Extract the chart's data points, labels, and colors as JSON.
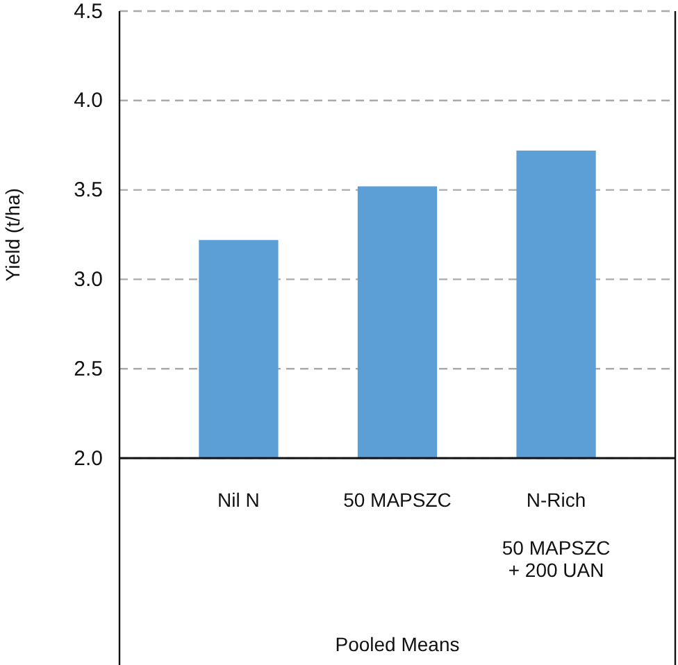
{
  "chart_data": {
    "type": "bar",
    "ylabel": "Yield (t/ha)",
    "annotations": [
      "Pooled Means"
    ],
    "categories": [
      "Nil N",
      "50 MAPSZC",
      "N-Rich\n\n50 MAPSZC\n+ 200 UAN"
    ],
    "values": [
      3.22,
      3.52,
      3.72
    ],
    "color": "#5b9fd6",
    "ylim": [
      2.0,
      4.5
    ],
    "yticks": [
      {
        "value": 2.0,
        "label": "2.0"
      },
      {
        "value": 2.5,
        "label": "2.5"
      },
      {
        "value": 3.0,
        "label": "3.0"
      },
      {
        "value": 3.5,
        "label": "3.5"
      },
      {
        "value": 4.0,
        "label": "4.0"
      },
      {
        "value": 4.5,
        "label": "4.5"
      }
    ],
    "grid": "y"
  }
}
